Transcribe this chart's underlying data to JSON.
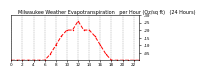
{
  "title": "Milwaukee Weather Evapotranspiration   per Hour (Oz/sq ft)   (24 Hours)",
  "x_values": [
    0,
    1,
    2,
    3,
    4,
    5,
    6,
    7,
    8,
    9,
    10,
    11,
    12,
    13,
    14,
    15,
    16,
    17,
    18,
    19,
    20,
    21,
    22,
    23
  ],
  "y_values": [
    0,
    0,
    0,
    0,
    0,
    0,
    0,
    0.04,
    0.1,
    0.16,
    0.2,
    0.2,
    0.26,
    0.2,
    0.2,
    0.16,
    0.1,
    0.04,
    0,
    0,
    0,
    0,
    0,
    0
  ],
  "line_color": "#ff0000",
  "line_style": "--",
  "marker": ".",
  "marker_size": 2,
  "grid_color": "#999999",
  "grid_style": "--",
  "bg_color": "#ffffff",
  "ylim": [
    0,
    0.3
  ],
  "xlim": [
    0,
    23
  ],
  "ytick_values": [
    0.05,
    0.1,
    0.15,
    0.2,
    0.25,
    0.3
  ],
  "ytick_labels": [
    ".05",
    ".10",
    ".15",
    ".20",
    ".25",
    ".30"
  ],
  "xtick_positions": [
    0,
    2,
    4,
    6,
    8,
    10,
    12,
    14,
    16,
    18,
    20,
    22
  ],
  "xtick_labels": [
    "0",
    "2",
    "4",
    "6",
    "8",
    "10",
    "12",
    "14",
    "16",
    "18",
    "20",
    "22"
  ],
  "title_fontsize": 3.5,
  "tick_fontsize": 3.0,
  "linewidth": 0.7
}
